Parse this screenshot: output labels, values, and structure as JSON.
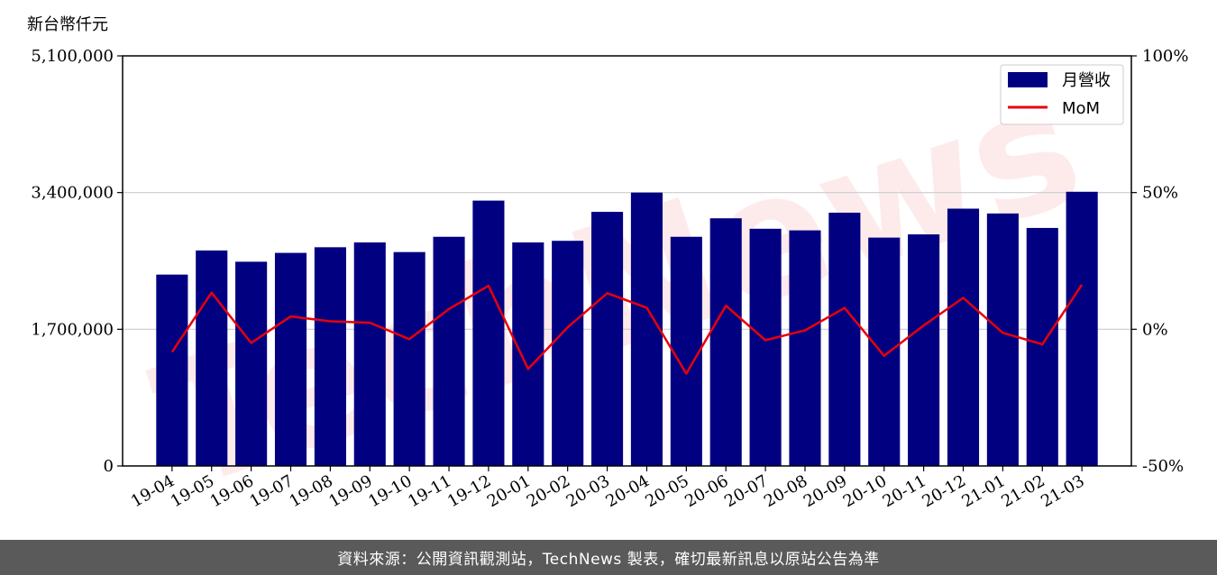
{
  "chart_data": {
    "type": "bar",
    "y_unit_label": "新台幣仟元",
    "categories": [
      "19-04",
      "19-05",
      "19-06",
      "19-07",
      "19-08",
      "19-09",
      "19-10",
      "19-11",
      "19-12",
      "20-01",
      "20-02",
      "20-03",
      "20-04",
      "20-05",
      "20-06",
      "20-07",
      "20-08",
      "20-09",
      "20-10",
      "20-11",
      "20-12",
      "21-01",
      "21-02",
      "21-03"
    ],
    "series": [
      {
        "name": "月營收",
        "type": "bar",
        "axis": "left",
        "color": "#000080",
        "values": [
          2380000,
          2680000,
          2540000,
          2650000,
          2720000,
          2780000,
          2660000,
          2850000,
          3300000,
          2780000,
          2800000,
          3160000,
          3400000,
          2850000,
          3080000,
          2950000,
          2930000,
          3150000,
          2840000,
          2880000,
          3200000,
          3140000,
          2960000,
          3410000
        ]
      },
      {
        "name": "MoM",
        "type": "line",
        "axis": "right",
        "color": "#e8000b",
        "values": [
          -8.3,
          13.4,
          -5.0,
          4.7,
          2.9,
          2.4,
          -3.6,
          7.4,
          15.9,
          -14.5,
          0.7,
          13.2,
          7.9,
          -16.2,
          8.6,
          -4.0,
          -0.4,
          7.8,
          -9.7,
          1.4,
          11.5,
          -1.3,
          -5.5,
          16.3
        ]
      }
    ],
    "y_left": {
      "ticks": [
        "0",
        "1,700,000",
        "3,400,000",
        "5,100,000"
      ],
      "range": [
        0,
        5100000
      ]
    },
    "y_right": {
      "ticks": [
        "-50%",
        "0%",
        "50%",
        "100%"
      ],
      "range": [
        -50,
        100
      ]
    },
    "grid": "horizontal",
    "legend_position": "top-right"
  },
  "watermark": "TechNews",
  "footer": "資料來源：公開資訊觀測站，TechNews 製表，確切最新訊息以原站公告為準"
}
